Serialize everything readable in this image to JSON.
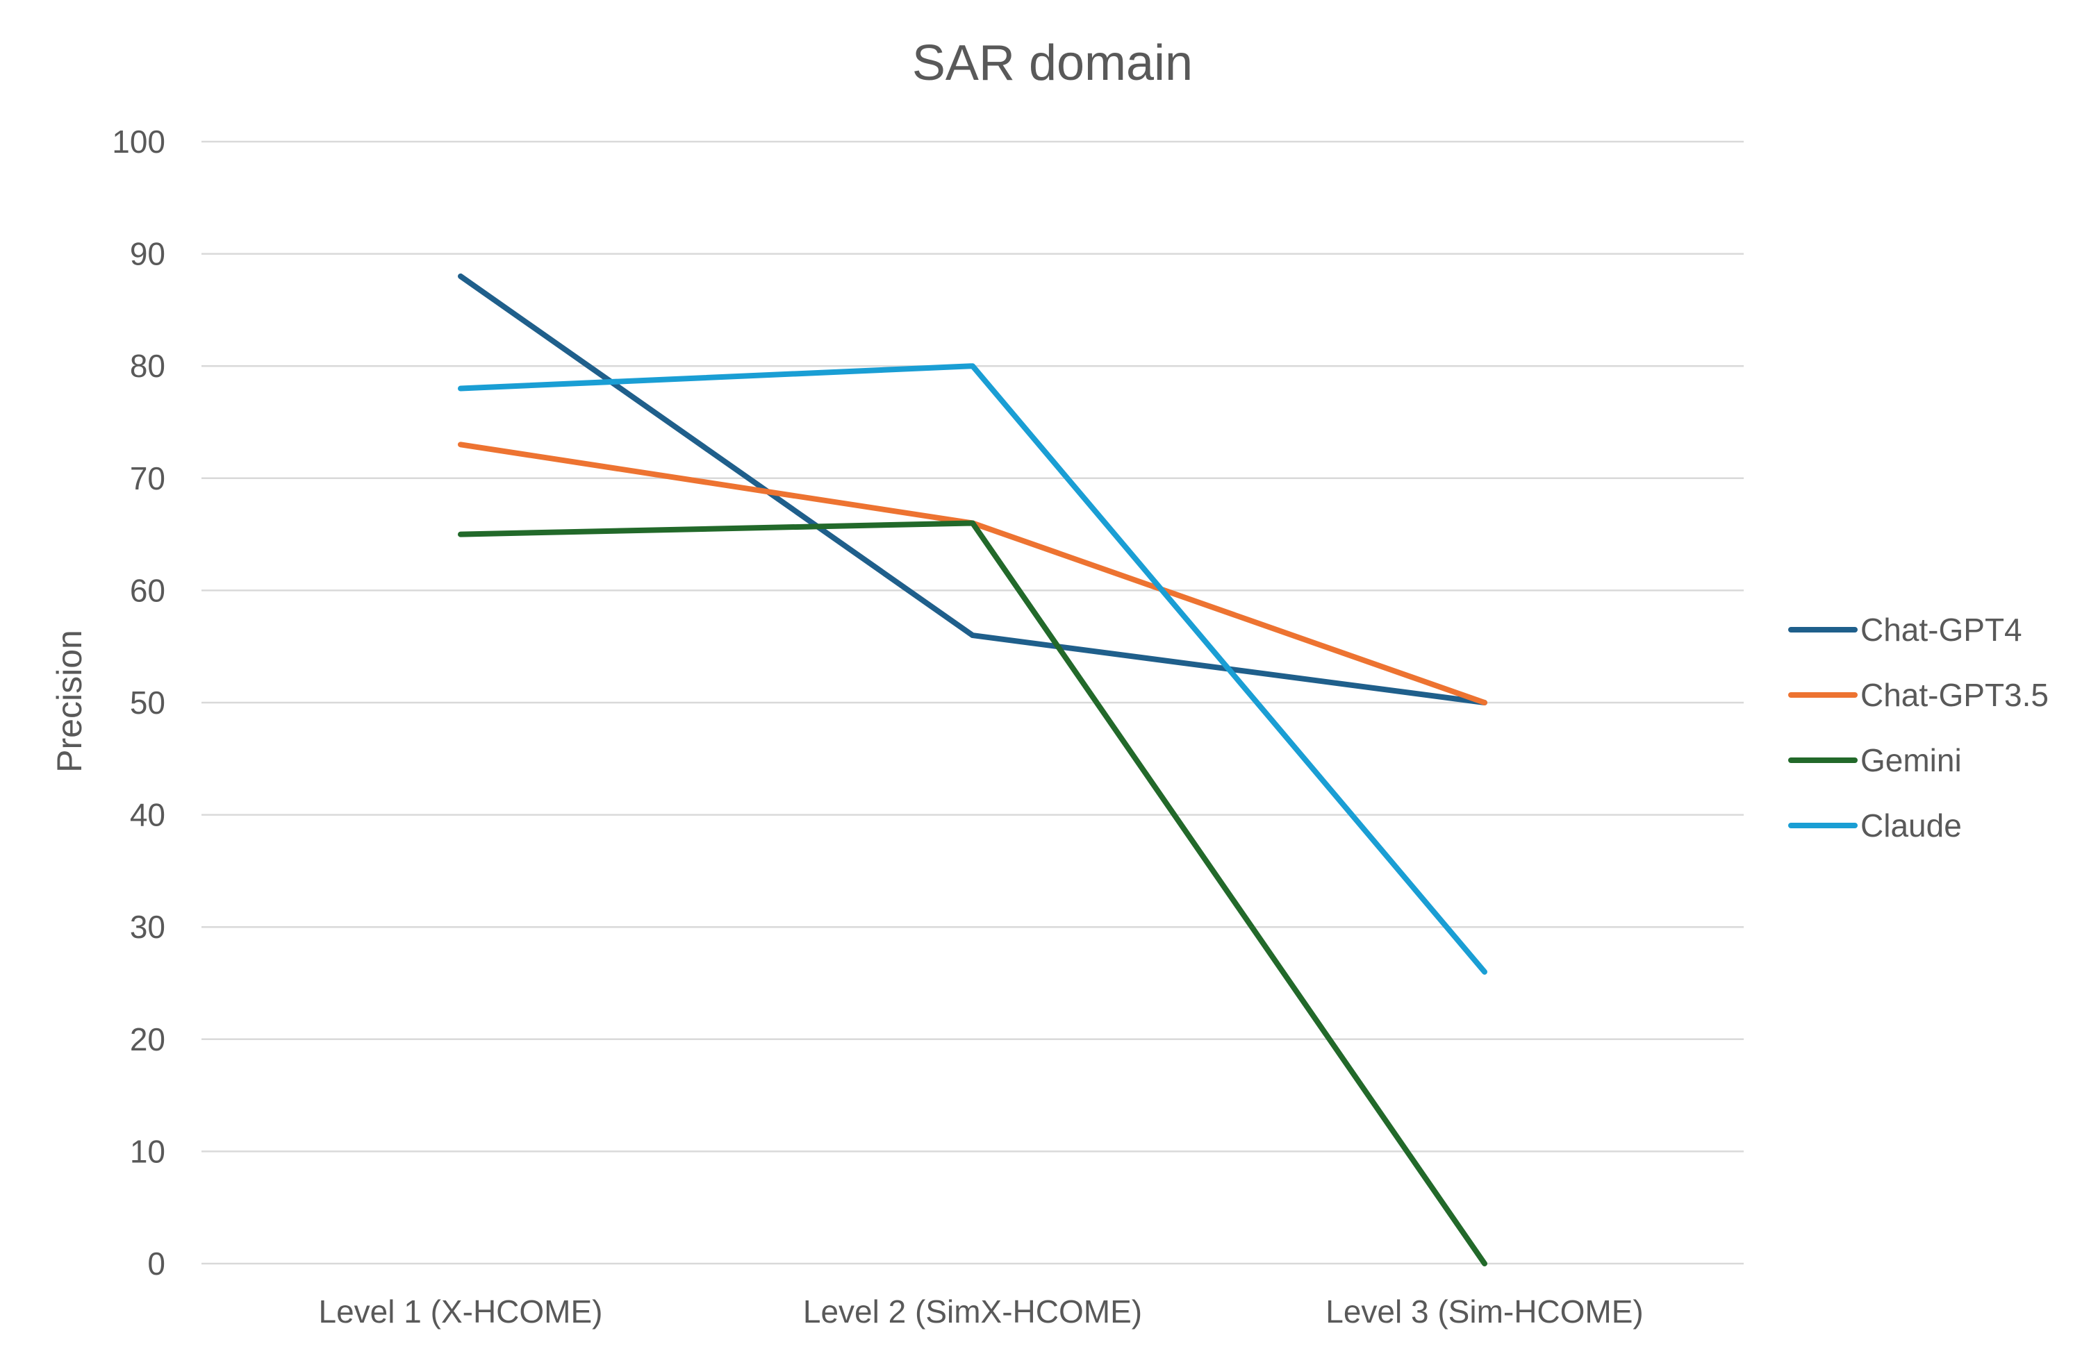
{
  "chart_data": {
    "type": "line",
    "title": "SAR domain",
    "xlabel": "",
    "ylabel": "Precision",
    "ylim": [
      0,
      100
    ],
    "yticks": [
      0,
      10,
      20,
      30,
      40,
      50,
      60,
      70,
      80,
      90,
      100
    ],
    "categories": [
      "Level 1 (X-HCOME)",
      "Level 2 (SimX-HCOME)",
      "Level 3 (Sim-HCOME)"
    ],
    "grid": true,
    "legend_position": "right",
    "series": [
      {
        "name": "Chat-GPT4",
        "color": "#1f5f8b",
        "values": [
          88,
          56,
          50
        ]
      },
      {
        "name": "Chat-GPT3.5",
        "color": "#ed7331",
        "values": [
          73,
          66,
          50
        ]
      },
      {
        "name": "Gemini",
        "color": "#22692a",
        "values": [
          65,
          66,
          0
        ]
      },
      {
        "name": "Claude",
        "color": "#1a9ed4",
        "values": [
          78,
          80,
          26
        ]
      }
    ]
  }
}
